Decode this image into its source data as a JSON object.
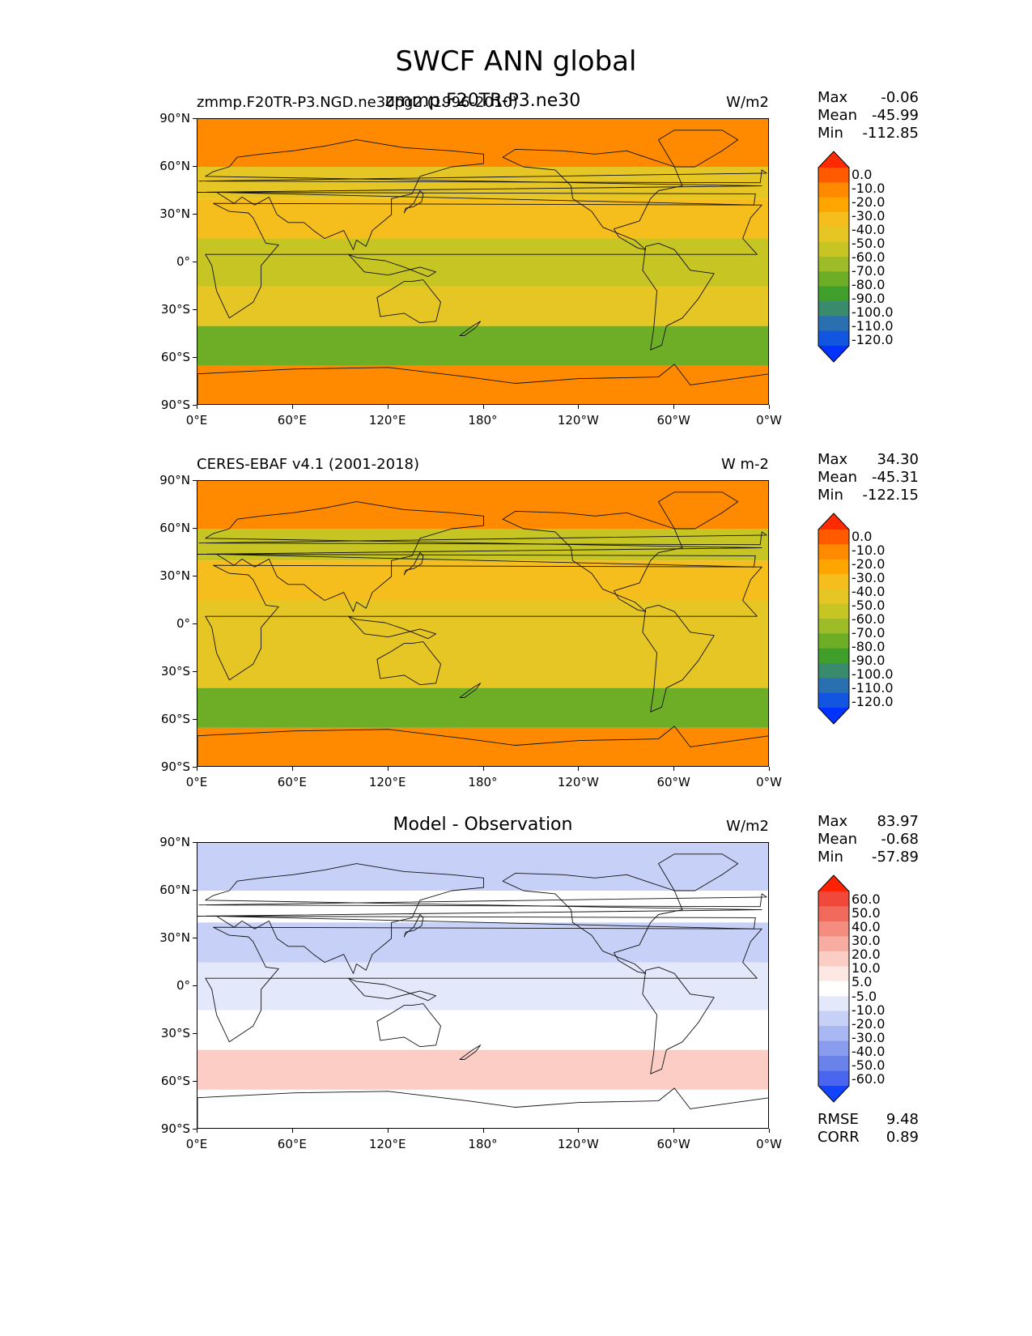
{
  "figure": {
    "title": "SWCF ANN global"
  },
  "axes": {
    "y_ticks": [
      "90°N",
      "60°N",
      "30°N",
      "0°",
      "30°S",
      "60°S",
      "90°S"
    ],
    "x_ticks": [
      "0°E",
      "60°E",
      "120°E",
      "180°",
      "120°W",
      "60°W",
      "0°W"
    ]
  },
  "panels": [
    {
      "left_title": "zmmp.F20TR-P3.NGD.ne30pg2.(1996-2010)",
      "center_title": "zmmp.F20TR-P3.ne30",
      "units": "W/m2",
      "stats": [
        {
          "label": "Max",
          "value": "-0.06"
        },
        {
          "label": "Mean",
          "value": "-45.99"
        },
        {
          "label": "Min",
          "value": "-112.85"
        }
      ],
      "colorbar": {
        "labels": [
          "0.0",
          "-10.0",
          "-20.0",
          "-30.0",
          "-40.0",
          "-50.0",
          "-60.0",
          "-70.0",
          "-80.0",
          "-90.0",
          "-100.0",
          "-110.0",
          "-120.0"
        ],
        "colors": [
          "#ff2a00",
          "#ff5a00",
          "#ff8a00",
          "#ffa500",
          "#f5be1c",
          "#e6c624",
          "#c6c524",
          "#9ebc28",
          "#6eae26",
          "#3f9f2a",
          "#3a8a6e",
          "#2a6fb0",
          "#1255e0",
          "#0033ff"
        ]
      }
    },
    {
      "left_title": "CERES-EBAF v4.1 (2001-2018)",
      "center_title": "",
      "units": "W m-2",
      "stats": [
        {
          "label": "Max",
          "value": "34.30"
        },
        {
          "label": "Mean",
          "value": "-45.31"
        },
        {
          "label": "Min",
          "value": "-122.15"
        }
      ],
      "colorbar": {
        "labels": [
          "0.0",
          "-10.0",
          "-20.0",
          "-30.0",
          "-40.0",
          "-50.0",
          "-60.0",
          "-70.0",
          "-80.0",
          "-90.0",
          "-100.0",
          "-110.0",
          "-120.0"
        ],
        "colors": [
          "#ff2a00",
          "#ff5a00",
          "#ff8a00",
          "#ffa500",
          "#f5be1c",
          "#e6c624",
          "#c6c524",
          "#9ebc28",
          "#6eae26",
          "#3f9f2a",
          "#3a8a6e",
          "#2a6fb0",
          "#1255e0",
          "#0033ff"
        ]
      }
    },
    {
      "left_title": "",
      "center_title": "Model - Observation",
      "units": "W/m2",
      "stats": [
        {
          "label": "Max",
          "value": "83.97"
        },
        {
          "label": "Mean",
          "value": "-0.68"
        },
        {
          "label": "Min",
          "value": "-57.89"
        }
      ],
      "colorbar": {
        "labels": [
          "60.0",
          "50.0",
          "40.0",
          "30.0",
          "20.0",
          "10.0",
          "5.0",
          "-5.0",
          "-10.0",
          "-20.0",
          "-30.0",
          "-40.0",
          "-50.0",
          "-60.0"
        ],
        "colors": [
          "#ff2200",
          "#f0483a",
          "#f26a5c",
          "#f58c80",
          "#f8ada3",
          "#fbcdc5",
          "#fde8e4",
          "#ffffff",
          "#e4e8fb",
          "#c7d0f7",
          "#a9b7f2",
          "#8a9ced",
          "#6a82ea",
          "#4a66ee",
          "#1144ff"
        ]
      },
      "metrics": [
        {
          "label": "RMSE",
          "value": "9.48"
        },
        {
          "label": "CORR",
          "value": "0.89"
        }
      ]
    }
  ],
  "chart_data": [
    {
      "type": "heatmap",
      "title": "zmmp.F20TR-P3.ne30",
      "subtitle": "zmmp.F20TR-P3.NGD.ne30pg2.(1996-2010)",
      "units": "W/m2",
      "x_ticks": [
        "0°E",
        "60°E",
        "120°E",
        "180°",
        "120°W",
        "60°W",
        "0°W"
      ],
      "y_ticks": [
        "90°N",
        "60°N",
        "30°N",
        "0°",
        "30°S",
        "60°S",
        "90°S"
      ],
      "stats": {
        "max": -0.06,
        "mean": -45.99,
        "min": -112.85
      },
      "levels": [
        0,
        -10,
        -20,
        -30,
        -40,
        -50,
        -60,
        -70,
        -80,
        -90,
        -100,
        -110,
        -120
      ],
      "zonal_bands": [
        {
          "lat": [
            60,
            90
          ],
          "value": -10
        },
        {
          "lat": [
            40,
            60
          ],
          "value": -45
        },
        {
          "lat": [
            15,
            40
          ],
          "value": -35
        },
        {
          "lat": [
            -15,
            15
          ],
          "value": -50
        },
        {
          "lat": [
            -40,
            -15
          ],
          "value": -45
        },
        {
          "lat": [
            -65,
            -40
          ],
          "value": -75
        },
        {
          "lat": [
            -90,
            -65
          ],
          "value": -10
        }
      ]
    },
    {
      "type": "heatmap",
      "title": "CERES-EBAF v4.1 (2001-2018)",
      "units": "W m-2",
      "x_ticks": [
        "0°E",
        "60°E",
        "120°E",
        "180°",
        "120°W",
        "60°W",
        "0°W"
      ],
      "y_ticks": [
        "90°N",
        "60°N",
        "30°N",
        "0°",
        "30°S",
        "60°S",
        "90°S"
      ],
      "stats": {
        "max": 34.3,
        "mean": -45.31,
        "min": -122.15
      },
      "levels": [
        0,
        -10,
        -20,
        -30,
        -40,
        -50,
        -60,
        -70,
        -80,
        -90,
        -100,
        -110,
        -120
      ],
      "zonal_bands": [
        {
          "lat": [
            60,
            90
          ],
          "value": -15
        },
        {
          "lat": [
            40,
            60
          ],
          "value": -50
        },
        {
          "lat": [
            15,
            40
          ],
          "value": -35
        },
        {
          "lat": [
            -15,
            15
          ],
          "value": -45
        },
        {
          "lat": [
            -40,
            -15
          ],
          "value": -45
        },
        {
          "lat": [
            -65,
            -40
          ],
          "value": -70
        },
        {
          "lat": [
            -90,
            -65
          ],
          "value": -10
        }
      ]
    },
    {
      "type": "heatmap",
      "title": "Model - Observation",
      "units": "W/m2",
      "x_ticks": [
        "0°E",
        "60°E",
        "120°E",
        "180°",
        "120°W",
        "60°W",
        "0°W"
      ],
      "y_ticks": [
        "90°N",
        "60°N",
        "30°N",
        "0°",
        "30°S",
        "60°S",
        "90°S"
      ],
      "stats": {
        "max": 83.97,
        "mean": -0.68,
        "min": -57.89
      },
      "levels": [
        60,
        50,
        40,
        30,
        20,
        10,
        5,
        -5,
        -10,
        -20,
        -30,
        -40,
        -50,
        -60
      ],
      "metrics": {
        "rmse": 9.48,
        "corr": 0.89
      },
      "zonal_bands": [
        {
          "lat": [
            60,
            90
          ],
          "value": -10
        },
        {
          "lat": [
            40,
            60
          ],
          "value": 5
        },
        {
          "lat": [
            15,
            40
          ],
          "value": -10
        },
        {
          "lat": [
            -15,
            15
          ],
          "value": -5
        },
        {
          "lat": [
            -40,
            -15
          ],
          "value": 5
        },
        {
          "lat": [
            -65,
            -40
          ],
          "value": 15
        },
        {
          "lat": [
            -90,
            -65
          ],
          "value": 0
        }
      ]
    }
  ]
}
